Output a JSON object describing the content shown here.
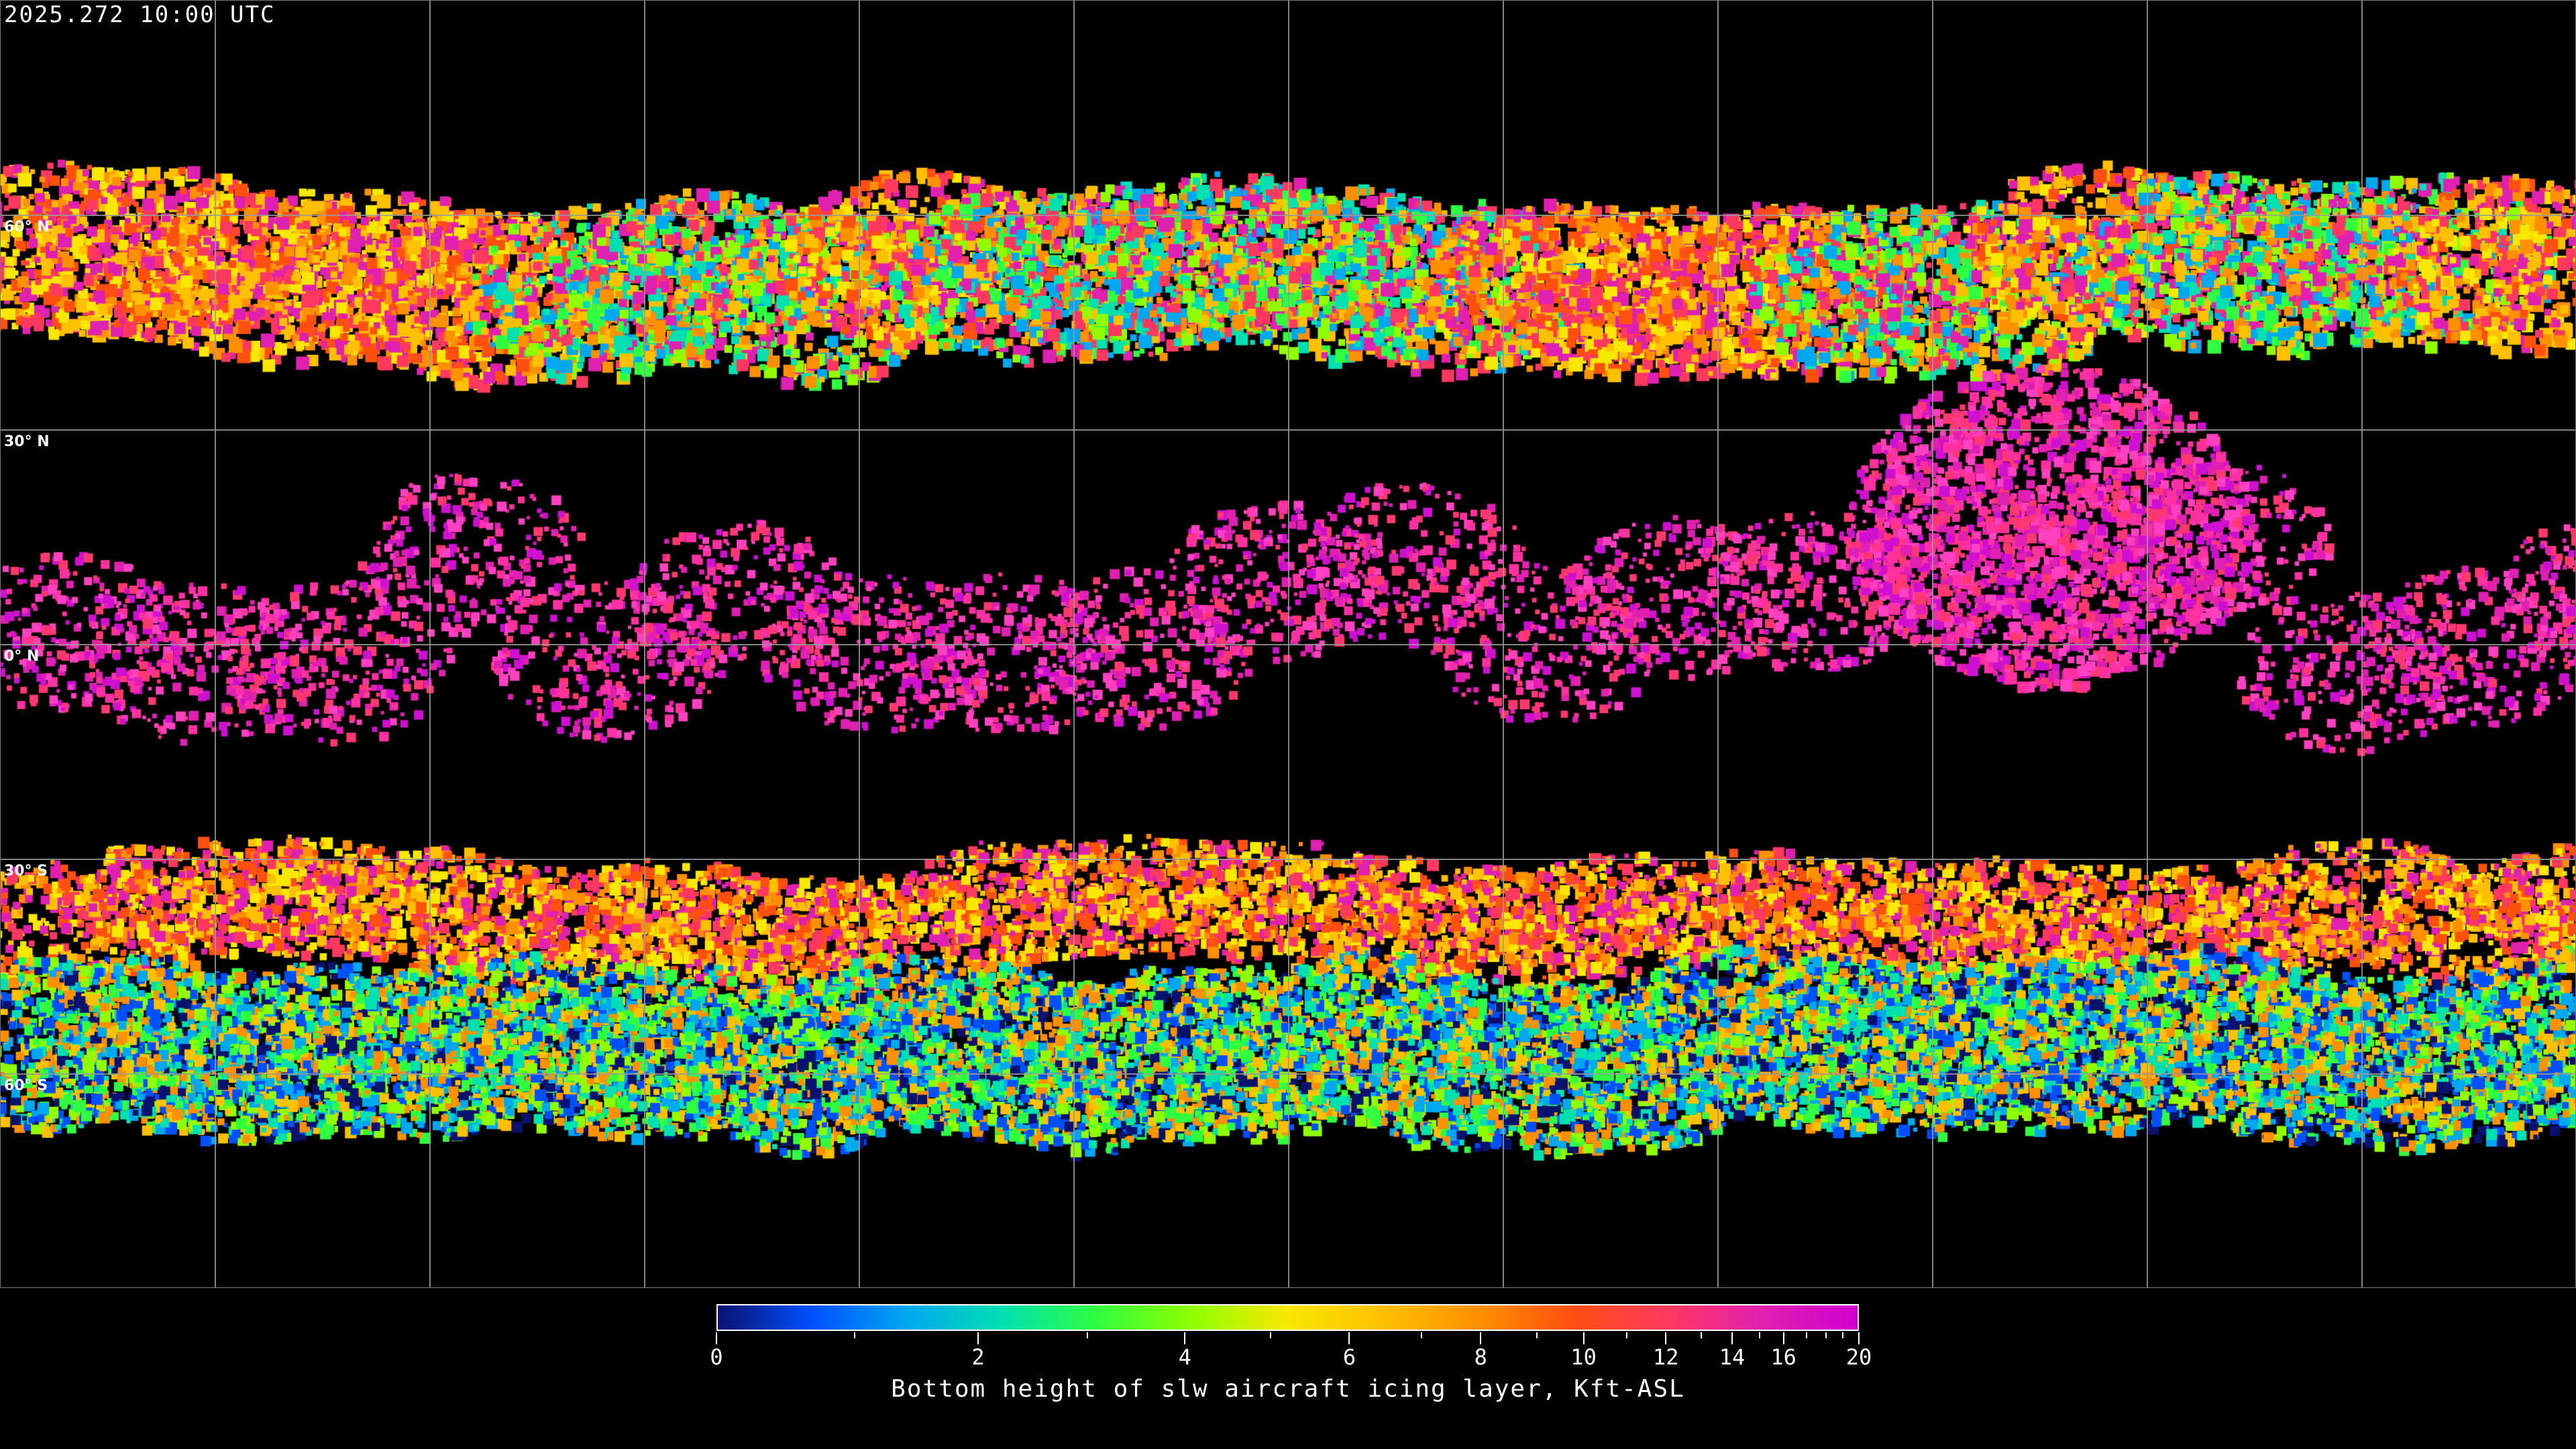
{
  "title": "2025.272 10:00 UTC",
  "map": {
    "projection": "equirectangular",
    "lon_grid_step_deg": 30,
    "lat_labels": [
      "60° N",
      "30° N",
      "0° N",
      "30° S",
      "60° S"
    ],
    "background_color": "#000000",
    "coastline_color": "#ffffff",
    "grid_color": "#9a9a9a"
  },
  "colorbar": {
    "title": "Bottom height of slw aircraft icing layer, Kft-ASL",
    "range": [
      0,
      20
    ],
    "major_ticks": [
      "0",
      "2",
      "4",
      "6",
      "8",
      "10",
      "12",
      "14",
      "16",
      "20"
    ],
    "minor_ticks": [
      1,
      3,
      5,
      7,
      9,
      11,
      13,
      15,
      17,
      18,
      19
    ],
    "colors": [
      "#0a1270",
      "#0050ff",
      "#00a8f0",
      "#00e0b0",
      "#30ff40",
      "#90ff00",
      "#f8e800",
      "#ffc000",
      "#ff9000",
      "#ff5010",
      "#ff3860",
      "#e020b0",
      "#d000d0"
    ]
  }
}
